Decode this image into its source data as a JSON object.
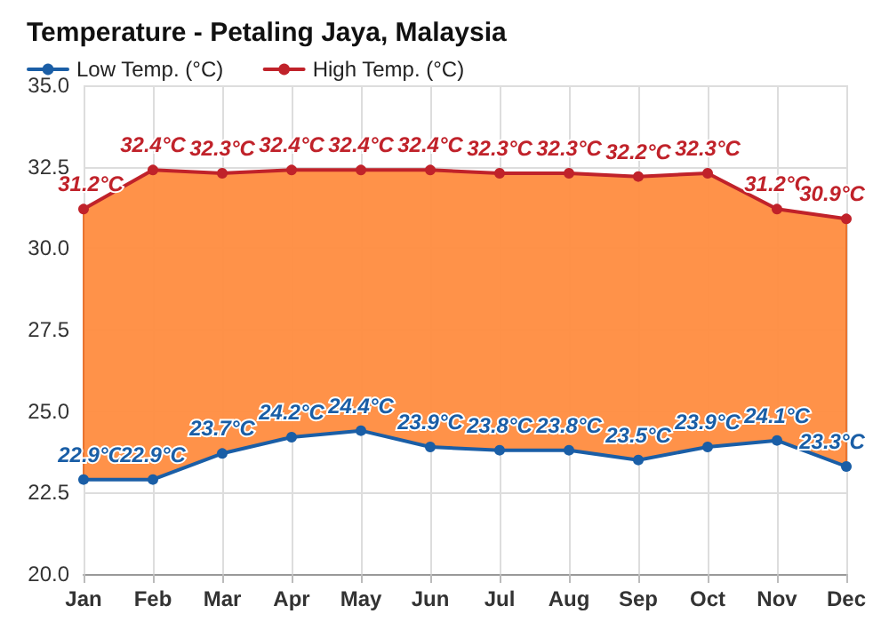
{
  "chart_data": {
    "type": "line",
    "title": "Temperature - Petaling Jaya, Malaysia",
    "categories": [
      "Jan",
      "Feb",
      "Mar",
      "Apr",
      "May",
      "Jun",
      "Jul",
      "Aug",
      "Sep",
      "Oct",
      "Nov",
      "Dec"
    ],
    "series": [
      {
        "name": "Low Temp. (°C)",
        "color": "#1a5ea6",
        "values": [
          22.9,
          22.9,
          23.7,
          24.2,
          24.4,
          23.9,
          23.8,
          23.8,
          23.5,
          23.9,
          24.1,
          23.3
        ],
        "value_labels": [
          "22.9°C",
          "22.9°C",
          "23.7°C",
          "24.2°C",
          "24.4°C",
          "23.9°C",
          "23.8°C",
          "23.8°C",
          "23.5°C",
          "23.9°C",
          "24.1°C",
          "23.3°C"
        ]
      },
      {
        "name": "High Temp. (°C)",
        "type": "area",
        "color": "#c0222a",
        "values": [
          31.2,
          32.4,
          32.3,
          32.4,
          32.4,
          32.4,
          32.3,
          32.3,
          32.2,
          32.3,
          31.2,
          30.9
        ],
        "value_labels": [
          "31.2°C",
          "32.4°C",
          "32.3°C",
          "32.4°C",
          "32.4°C",
          "32.4°C",
          "32.3°C",
          "32.3°C",
          "32.2°C",
          "32.3°C",
          "31.2°C",
          "30.9°C"
        ]
      }
    ],
    "ylim": [
      20,
      35
    ],
    "yticks": [
      {
        "value": 20,
        "label": "20.0"
      },
      {
        "value": 22.5,
        "label": "22.5"
      },
      {
        "value": 25,
        "label": "25.0"
      },
      {
        "value": 27.5,
        "label": "27.5"
      },
      {
        "value": 30,
        "label": "30.0"
      },
      {
        "value": 32.5,
        "label": "32.5"
      },
      {
        "value": 35,
        "label": "35.0"
      }
    ],
    "grid": true,
    "legend": "top left",
    "marker": "circle",
    "line_style": "solid"
  }
}
